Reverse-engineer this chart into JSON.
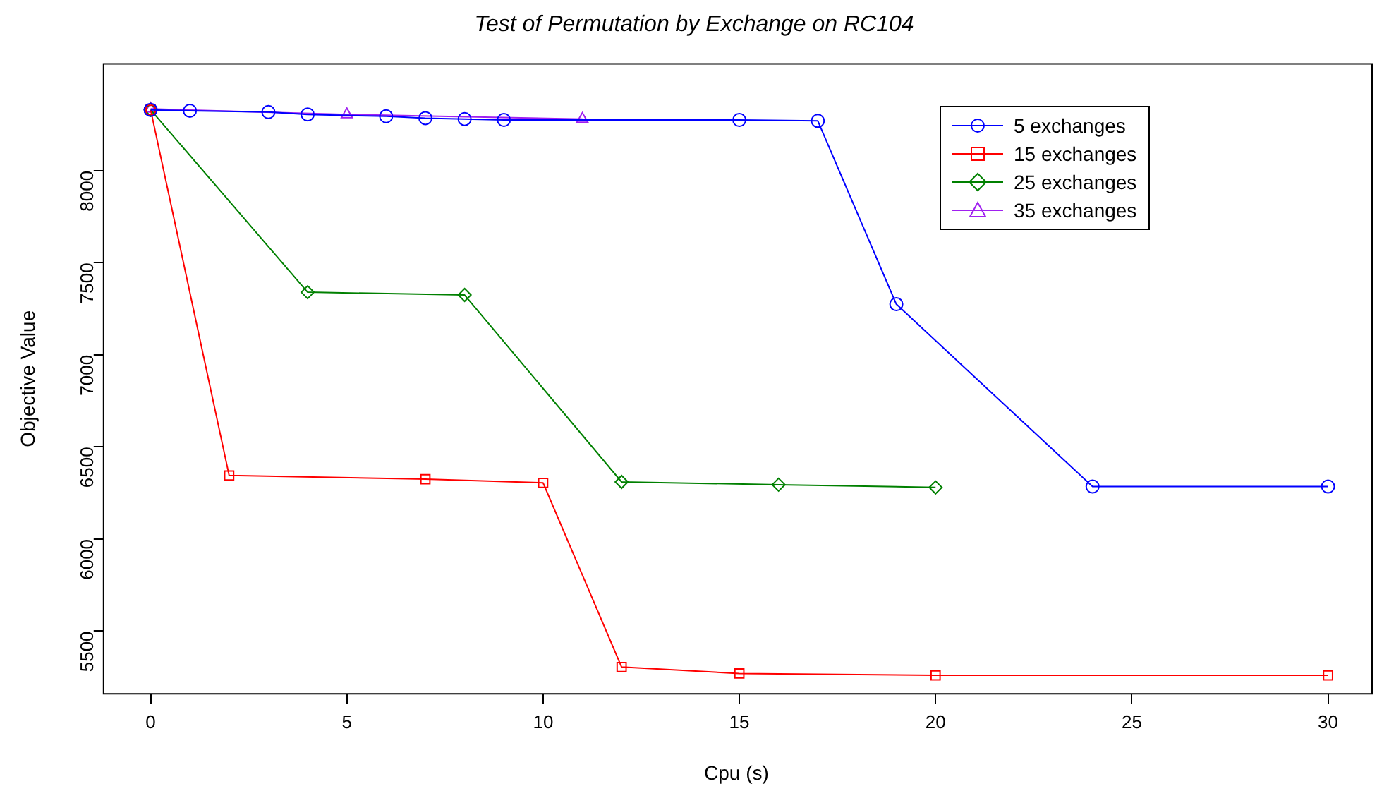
{
  "chart_data": {
    "type": "line",
    "title": "Test of Permutation by Exchange on RC104",
    "xlabel": "Cpu (s)",
    "ylabel": "Objective Value",
    "xlim": [
      -1.2,
      31.05
    ],
    "xticks": [
      0,
      5,
      10,
      15,
      20,
      25,
      30
    ],
    "ylim": [
      5160,
      8580
    ],
    "yticks": [
      5500,
      6000,
      6500,
      7000,
      7500,
      8000
    ],
    "grid": false,
    "legend": "top right",
    "line_style": "solid",
    "series": [
      {
        "name": "5 exchanges",
        "color": "#0000ff",
        "marker": "circle",
        "x": [
          0,
          1,
          3,
          4,
          6,
          7,
          8,
          9,
          15,
          17,
          19,
          24,
          30
        ],
        "values": [
          8330,
          8325,
          8318,
          8305,
          8295,
          8285,
          8280,
          8275,
          8275,
          8270,
          7275,
          6285,
          6285
        ]
      },
      {
        "name": "15 exchanges",
        "color": "#ff0000",
        "marker": "square",
        "x": [
          0,
          2,
          7,
          10,
          12,
          15,
          20,
          30
        ],
        "values": [
          8330,
          6345,
          6325,
          6305,
          5305,
          5270,
          5260,
          5260
        ]
      },
      {
        "name": "25 exchanges",
        "color": "#008000",
        "marker": "diamond",
        "x": [
          0,
          4,
          8,
          12,
          16,
          20
        ],
        "values": [
          8330,
          7340,
          7325,
          6310,
          6295,
          6280
        ]
      },
      {
        "name": "35 exchanges",
        "color": "#a020f0",
        "marker": "triangle",
        "x": [
          0,
          5,
          11
        ],
        "values": [
          8335,
          8305,
          8280
        ]
      }
    ]
  }
}
